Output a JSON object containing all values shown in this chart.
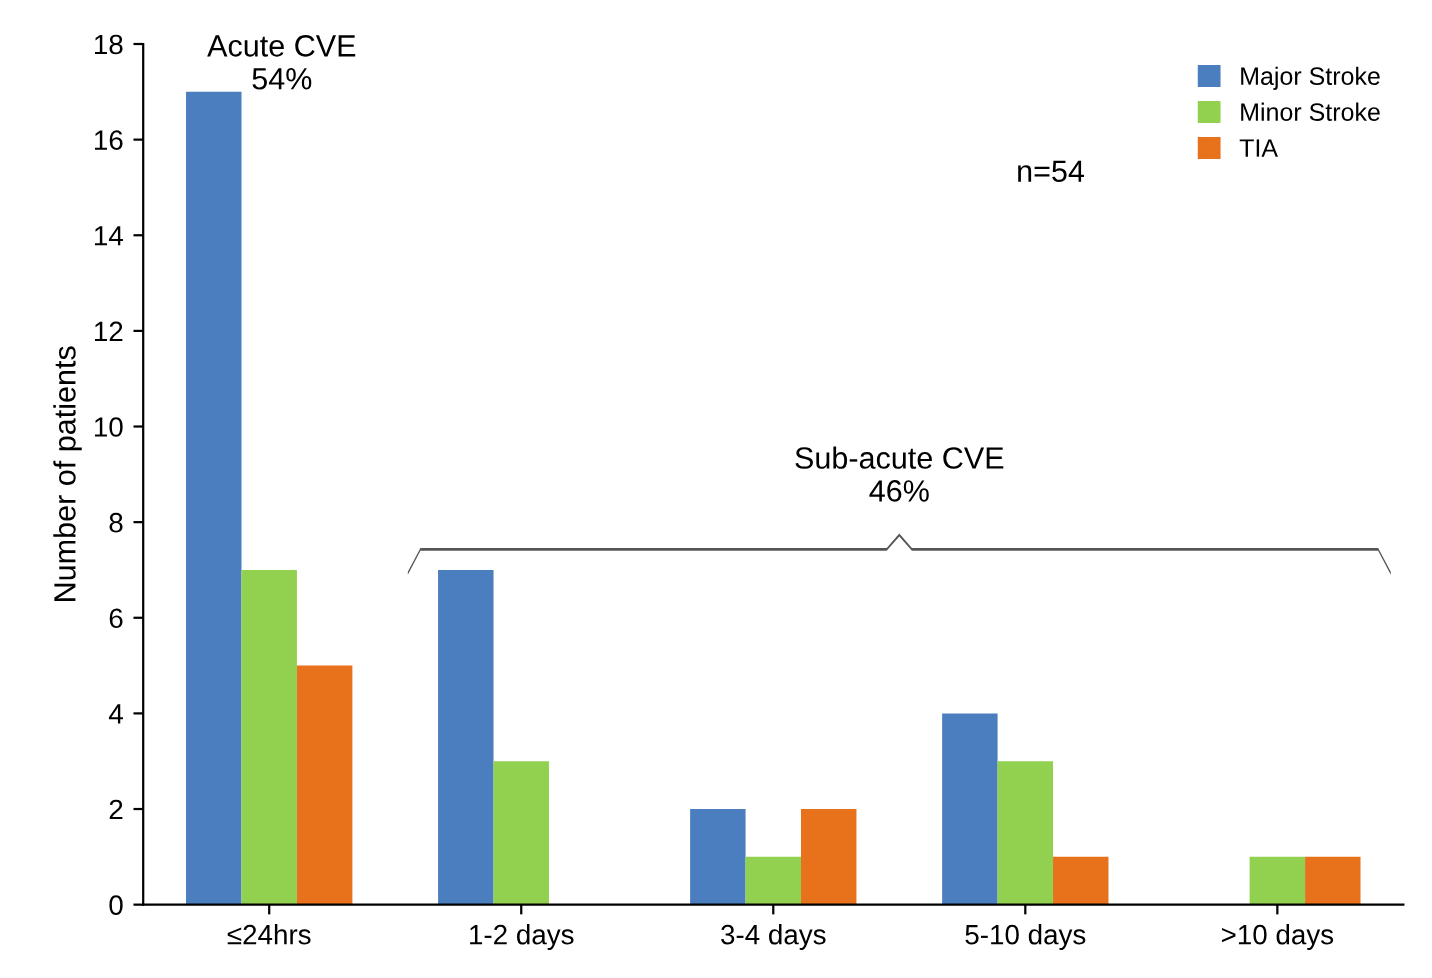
{
  "chart_data": {
    "type": "bar",
    "ylabel": "Number of patients",
    "categories": [
      "≤24hrs",
      "1-2 days",
      "3-4 days",
      "5-10 days",
      ">10 days"
    ],
    "series": [
      {
        "name": "Major Stroke",
        "color": "#4a7ebf",
        "values": [
          17,
          7,
          2,
          4,
          0
        ]
      },
      {
        "name": "Minor Stroke",
        "color": "#92d050",
        "values": [
          7,
          3,
          1,
          3,
          1
        ]
      },
      {
        "name": "TIA",
        "color": "#e8711c",
        "values": [
          5,
          0,
          2,
          1,
          1
        ]
      }
    ],
    "ylim": [
      0,
      18
    ],
    "yticks": [
      0,
      2,
      4,
      6,
      8,
      10,
      12,
      14,
      16,
      18
    ],
    "grid": false,
    "legend": "top right",
    "annotations": [
      "Acute CVE\n54%",
      "n=54",
      "Sub-acute CVE\n46%"
    ]
  }
}
